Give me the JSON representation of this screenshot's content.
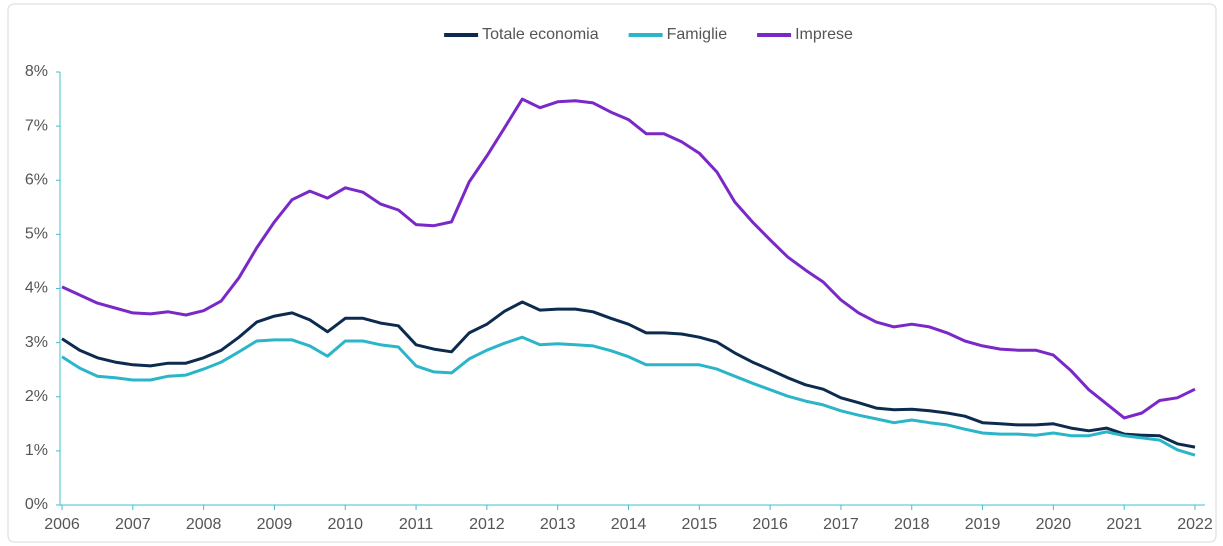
{
  "chart_data": {
    "type": "line",
    "x": [
      2006,
      2006.25,
      2006.5,
      2006.75,
      2007,
      2007.25,
      2007.5,
      2007.75,
      2008,
      2008.25,
      2008.5,
      2008.75,
      2009,
      2009.25,
      2009.5,
      2009.75,
      2010,
      2010.25,
      2010.5,
      2010.75,
      2011,
      2011.25,
      2011.5,
      2011.75,
      2012,
      2012.25,
      2012.5,
      2012.75,
      2013,
      2013.25,
      2013.5,
      2013.75,
      2014,
      2014.25,
      2014.5,
      2014.75,
      2015,
      2015.25,
      2015.5,
      2015.75,
      2016,
      2016.25,
      2016.5,
      2016.75,
      2017,
      2017.25,
      2017.5,
      2017.75,
      2018,
      2018.25,
      2018.5,
      2018.75,
      2019,
      2019.25,
      2019.5,
      2019.75,
      2020,
      2020.25,
      2020.5,
      2020.75,
      2021,
      2021.25,
      2021.5,
      2021.75,
      2022
    ],
    "series": [
      {
        "name": "Totale economia",
        "color": "#0d2b4e",
        "values": [
          3.07,
          2.86,
          2.72,
          2.64,
          2.59,
          2.57,
          2.62,
          2.62,
          2.72,
          2.86,
          3.1,
          3.38,
          3.49,
          3.55,
          3.42,
          3.2,
          3.45,
          3.45,
          3.36,
          3.31,
          2.96,
          2.88,
          2.83,
          3.18,
          3.34,
          3.58,
          3.75,
          3.6,
          3.62,
          3.62,
          3.57,
          3.45,
          3.34,
          3.18,
          3.18,
          3.16,
          3.1,
          3.01,
          2.81,
          2.64,
          2.5,
          2.35,
          2.22,
          2.14,
          1.98,
          1.89,
          1.79,
          1.76,
          1.77,
          1.74,
          1.7,
          1.64,
          1.52,
          1.5,
          1.48,
          1.48,
          1.5,
          1.42,
          1.37,
          1.42,
          1.31,
          1.29,
          1.28,
          1.13,
          1.07
        ]
      },
      {
        "name": "Famiglie",
        "color": "#2bb5c8",
        "values": [
          2.74,
          2.53,
          2.38,
          2.35,
          2.31,
          2.31,
          2.38,
          2.4,
          2.51,
          2.64,
          2.83,
          3.03,
          3.05,
          3.05,
          2.94,
          2.75,
          3.03,
          3.03,
          2.96,
          2.92,
          2.57,
          2.46,
          2.44,
          2.7,
          2.86,
          2.99,
          3.1,
          2.96,
          2.98,
          2.96,
          2.94,
          2.85,
          2.74,
          2.59,
          2.59,
          2.59,
          2.59,
          2.51,
          2.38,
          2.25,
          2.13,
          2.01,
          1.92,
          1.85,
          1.74,
          1.66,
          1.59,
          1.52,
          1.57,
          1.52,
          1.48,
          1.4,
          1.33,
          1.31,
          1.31,
          1.29,
          1.33,
          1.28,
          1.28,
          1.35,
          1.28,
          1.24,
          1.2,
          1.02,
          0.92
        ]
      },
      {
        "name": "Imprese",
        "color": "#7a28c8",
        "values": [
          4.03,
          3.88,
          3.73,
          3.64,
          3.55,
          3.53,
          3.57,
          3.51,
          3.59,
          3.77,
          4.2,
          4.75,
          5.23,
          5.64,
          5.8,
          5.67,
          5.86,
          5.78,
          5.56,
          5.45,
          5.18,
          5.16,
          5.23,
          5.97,
          6.45,
          6.97,
          7.5,
          7.34,
          7.45,
          7.47,
          7.43,
          7.26,
          7.12,
          6.86,
          6.86,
          6.71,
          6.5,
          6.15,
          5.6,
          5.23,
          4.9,
          4.58,
          4.34,
          4.12,
          3.79,
          3.55,
          3.38,
          3.29,
          3.34,
          3.29,
          3.18,
          3.03,
          2.94,
          2.88,
          2.86,
          2.86,
          2.77,
          2.48,
          2.13,
          1.87,
          1.61,
          1.7,
          1.93,
          1.98,
          2.14
        ]
      }
    ],
    "xlim": [
      2006,
      2022
    ],
    "xticks": [
      2006,
      2007,
      2008,
      2009,
      2010,
      2011,
      2012,
      2013,
      2014,
      2015,
      2016,
      2017,
      2018,
      2019,
      2020,
      2021,
      2022
    ],
    "ylim": [
      0,
      8
    ],
    "yticks": [
      {
        "value": 0,
        "label": "0%"
      },
      {
        "value": 1,
        "label": "1%"
      },
      {
        "value": 2,
        "label": "2%"
      },
      {
        "value": 3,
        "label": "3%"
      },
      {
        "value": 4,
        "label": "4%"
      },
      {
        "value": 5,
        "label": "5%"
      },
      {
        "value": 6,
        "label": "6%"
      },
      {
        "value": 7,
        "label": "7%"
      },
      {
        "value": 8,
        "label": "8%"
      }
    ],
    "legend": "top",
    "grid": false
  }
}
